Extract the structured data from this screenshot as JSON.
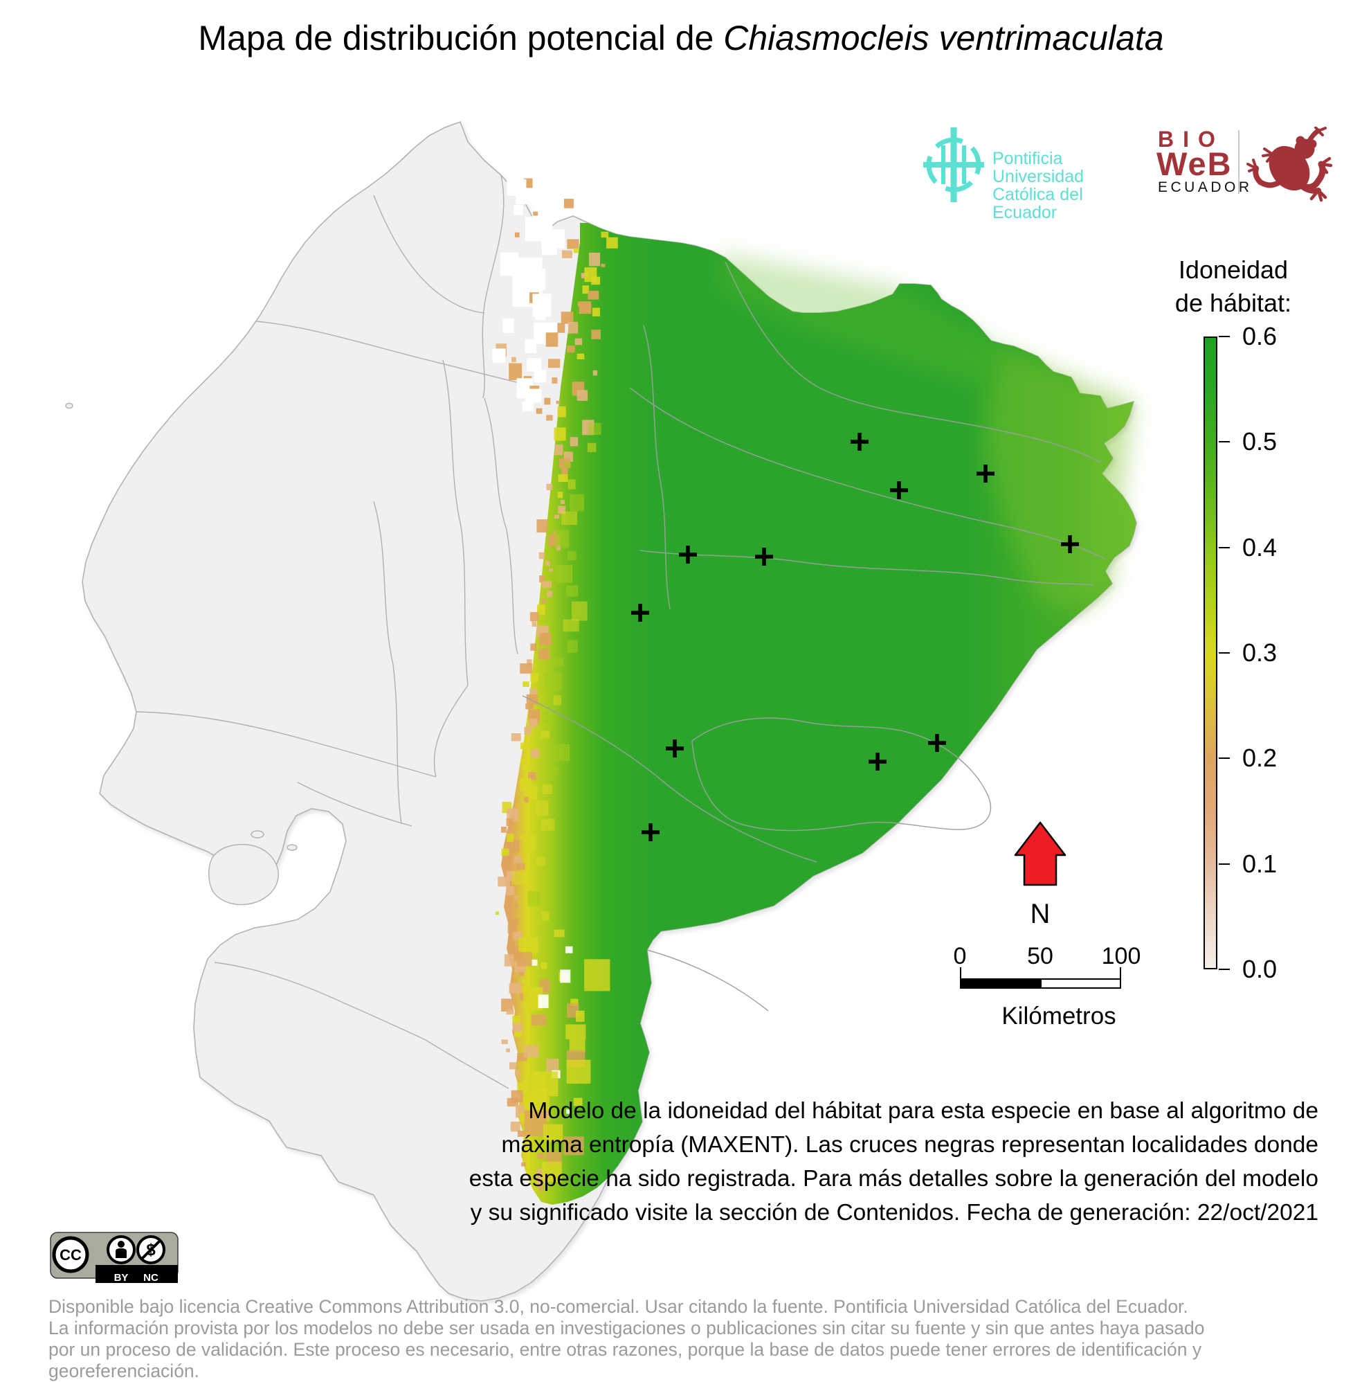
{
  "title": {
    "prefix": "Mapa de distribución potencial de ",
    "species": "Chiasmocleis ventrimaculata"
  },
  "logos": {
    "puce": {
      "line1": "Pontificia Universidad",
      "line2": "Católica del Ecuador",
      "color": "#5be0d2"
    },
    "bioweb": {
      "bio": "BIO",
      "web": "WeB",
      "country": "ECUADOR",
      "brand_red": "#a23439"
    }
  },
  "legend": {
    "title_line1": "Idoneidad",
    "title_line2": "de hábitat:",
    "ticks": [
      "0.6",
      "0.5",
      "0.4",
      "0.3",
      "0.2",
      "0.1",
      "0.0"
    ],
    "value_max": 0.6,
    "value_min": 0.0,
    "gradient": [
      {
        "value": 0.0,
        "color": "#f5efe9"
      },
      {
        "value": 0.05,
        "color": "#eed7c8"
      },
      {
        "value": 0.1,
        "color": "#e6bb9c"
      },
      {
        "value": 0.15,
        "color": "#e2a876"
      },
      {
        "value": 0.2,
        "color": "#dfa55f"
      },
      {
        "value": 0.25,
        "color": "#dcc13c"
      },
      {
        "value": 0.3,
        "color": "#d9d821"
      },
      {
        "value": 0.35,
        "color": "#b3d01e"
      },
      {
        "value": 0.4,
        "color": "#8fc71d"
      },
      {
        "value": 0.45,
        "color": "#64b91d"
      },
      {
        "value": 0.5,
        "color": "#41ae1e"
      },
      {
        "value": 0.55,
        "color": "#2aa723"
      },
      {
        "value": 0.6,
        "color": "#1ea321"
      }
    ]
  },
  "north_arrow": {
    "label": "N",
    "color": "#ee1c24"
  },
  "scale_bar": {
    "labels": [
      "0",
      "50",
      "100"
    ],
    "unit": "Kilómetros"
  },
  "caption": {
    "lines": [
      "Modelo de la idoneidad del hábitat para esta especie en base al algoritmo de",
      "máxima entropía (MAXENT). Las cruces negras representan localidades donde",
      "esta especie ha sido registrada. Para más detalles sobre la generación del modelo",
      "y su significado visite la sección de Contenidos. Fecha de generación: 22/oct/2021"
    ]
  },
  "license": {
    "cc": "CC",
    "by": "BY",
    "nc": "NC",
    "footer_lines": [
      "Disponible bajo licencia Creative Commons Attribution 3.0, no-comercial. Usar citando la fuente. Pontificia Universidad Católica del Ecuador.",
      "La información provista por los modelos no debe ser usada en investigaciones o publicaciones sin citar su fuente y sin que antes haya pasado",
      "por un proceso de validación. Este proceso es necesario, entre otras razones, porque la base de datos puede tener errores de identificación y georeferenciación."
    ]
  },
  "map": {
    "marker_symbol": "+",
    "marker_color": "#000000",
    "country_fill": "#f0f0f0",
    "boundary_color": "#b3b3b3",
    "occurrences": [
      [
        1242,
        638
      ],
      [
        1424,
        684
      ],
      [
        1299,
        708
      ],
      [
        1546,
        786
      ],
      [
        994,
        801
      ],
      [
        1104,
        804
      ],
      [
        925,
        885
      ],
      [
        975,
        1081
      ],
      [
        1354,
        1073
      ],
      [
        1268,
        1100
      ],
      [
        940,
        1202
      ]
    ]
  }
}
